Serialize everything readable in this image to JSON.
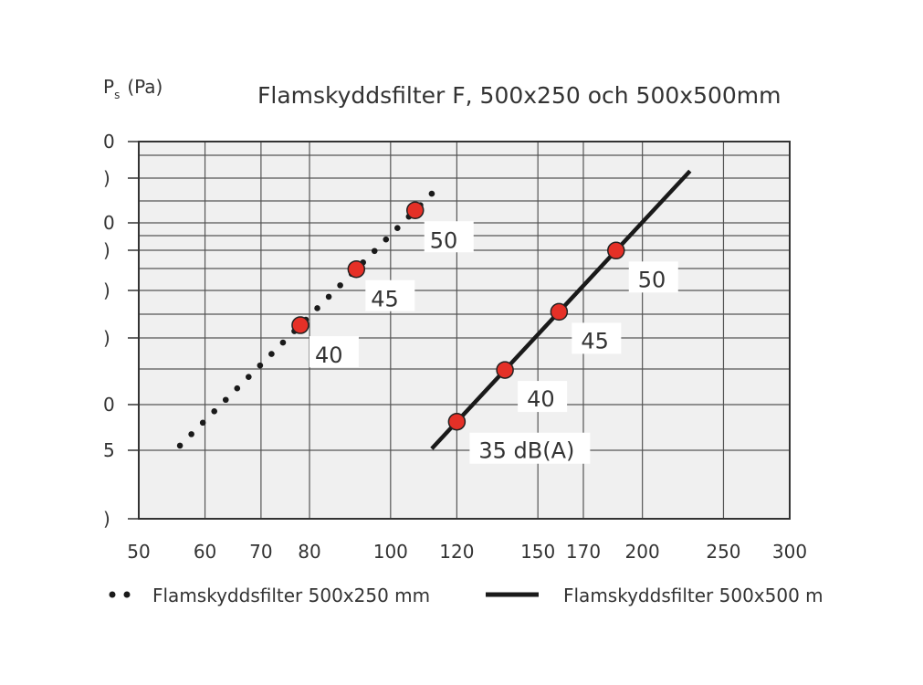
{
  "chart_data": {
    "type": "line",
    "title": "Flamskyddsfilter F, 500x250 och 500x500mm",
    "ylabel_main": "P",
    "ylabel_sub": "s",
    "ylabel_unit": "(Pa)",
    "xlabel": "",
    "x_scale": "log",
    "y_scale": "log",
    "xlim": [
      50,
      300
    ],
    "x_ticks": [
      "50",
      "60",
      "70",
      "80",
      "100",
      "120",
      "150",
      "170",
      "200",
      "250",
      "300"
    ],
    "y_tick_labels": [
      "0",
      ")",
      "0",
      ")",
      ")",
      ")",
      "0",
      "5",
      ")"
    ],
    "colors": {
      "marker": "#e53027",
      "line": "#1a1a1a",
      "plot_bg": "#f0f0f0",
      "grid": "#555555"
    },
    "series": [
      {
        "name": "Flamskyddsfilter 500x250 mm",
        "style": "dotted",
        "line_x": [
          56,
          112
        ],
        "points": [
          {
            "x": 78,
            "label": "40"
          },
          {
            "x": 91,
            "label": "45"
          },
          {
            "x": 107,
            "label": "50"
          }
        ]
      },
      {
        "name": "Flamskyddsfilter 500x500 m",
        "style": "solid",
        "line_x": [
          112,
          228
        ],
        "points": [
          {
            "x": 120,
            "label": "35 dB(A)"
          },
          {
            "x": 137,
            "label": "40"
          },
          {
            "x": 159,
            "label": "45"
          },
          {
            "x": 186,
            "label": "50"
          }
        ]
      }
    ]
  }
}
